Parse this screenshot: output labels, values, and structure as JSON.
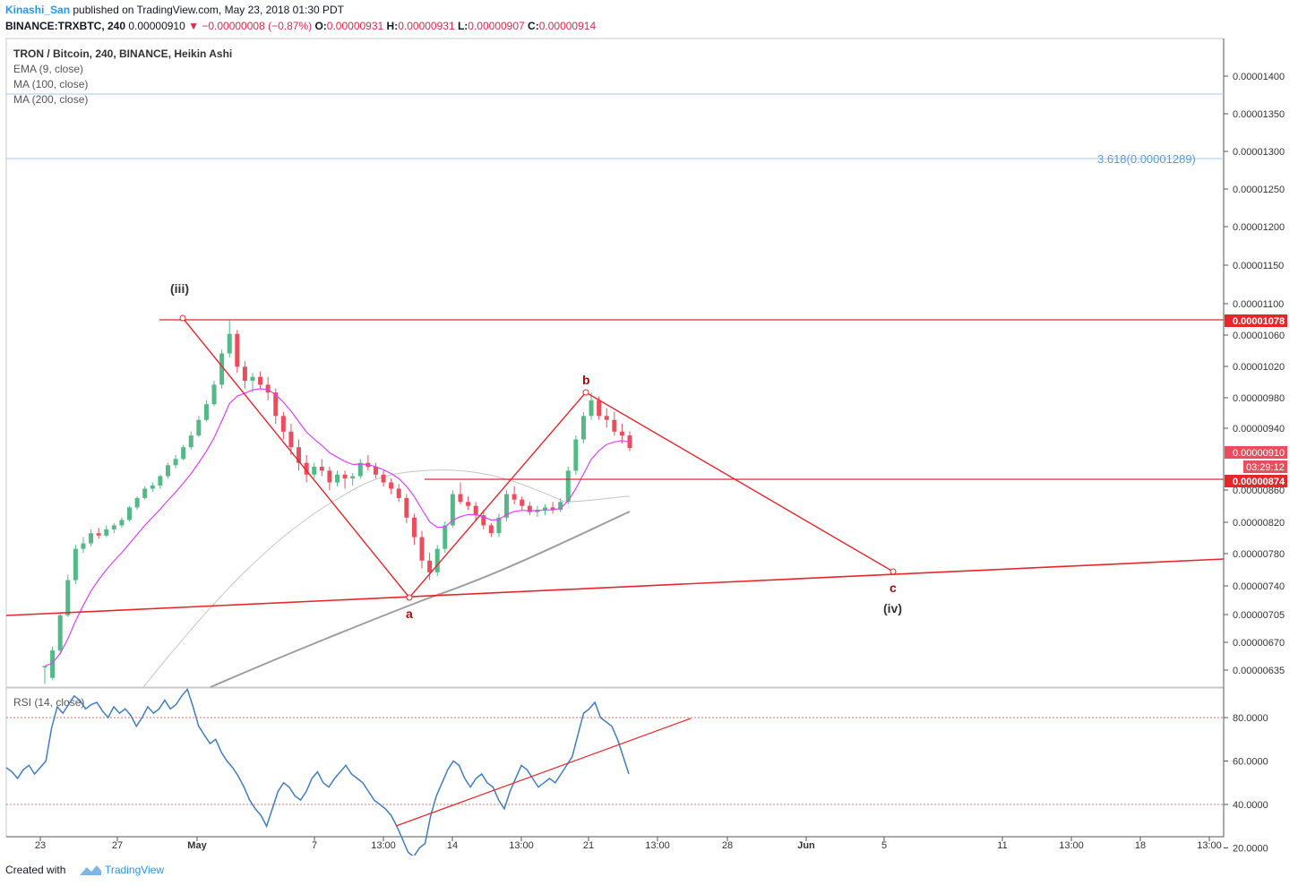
{
  "header": {
    "author": "Kinashi_San",
    "published": "published on TradingView.com, May 23, 2018 01:30 PDT",
    "symbol": "BINANCE:TRXBTC, 240",
    "price": "0.00000910",
    "change": "−0.00000008 (−0.87%)",
    "ohlc": {
      "o": "0.00000931",
      "h": "0.00000931",
      "l": "0.00000907",
      "c": "0.00000914"
    }
  },
  "legend": {
    "title": "TRON / Bitcoin, 240, BINANCE, Heikin Ashi",
    "indicators": [
      "EMA (9, close)",
      "MA (100, close)",
      "MA (200, close)"
    ]
  },
  "rsi_legend": "RSI (14, close)",
  "footer": {
    "created_with": "Created with",
    "brand": "TradingView"
  },
  "colors": {
    "up": "#53b987",
    "down": "#eb4d5c",
    "drawing": "#e8262a",
    "ema": "#e040fb",
    "ma": "#a0a0a0",
    "rsi": "#3f7dc2",
    "fib": "#5b9bd5"
  },
  "chart_data": [
    {
      "type": "candlestick",
      "title": "TRON / Bitcoin, 240, BINANCE, Heikin Ashi",
      "x_tick_labels": [
        "23",
        "27",
        "May",
        "7",
        "13:00",
        "14",
        "13:00",
        "21",
        "13:00",
        "28",
        "Jun",
        "5",
        "11",
        "13:00",
        "18",
        "13:00"
      ],
      "y_tick_labels": [
        "0.00001400",
        "0.00001350",
        "0.00001300",
        "0.00001250",
        "0.00001200",
        "0.00001150",
        "0.00001100",
        "0.00001060",
        "0.00001020",
        "0.00000980",
        "0.00000940",
        "0.00000860",
        "0.00000820",
        "0.00000780",
        "0.00000740",
        "0.00000705",
        "0.00000670",
        "0.00000635"
      ],
      "price_labels": [
        "0.00001078",
        "0.00000910",
        "03:29:12",
        "0.00000874"
      ],
      "fib_label": "3.618(0.00001289)",
      "wave_labels": [
        "(iii)",
        "a",
        "b",
        "c",
        "(iv)"
      ],
      "ohlc_approx": [
        [
          635,
          635,
          612,
          635
        ],
        [
          620,
          660,
          618,
          655
        ],
        [
          655,
          702,
          650,
          700
        ],
        [
          700,
          752,
          698,
          745
        ],
        [
          745,
          790,
          740,
          785
        ],
        [
          785,
          800,
          780,
          792
        ],
        [
          792,
          810,
          788,
          805
        ],
        [
          805,
          812,
          798,
          802
        ],
        [
          802,
          815,
          800,
          810
        ],
        [
          810,
          818,
          805,
          815
        ],
        [
          815,
          825,
          812,
          822
        ],
        [
          822,
          840,
          820,
          838
        ],
        [
          838,
          852,
          835,
          850
        ],
        [
          850,
          865,
          848,
          862
        ],
        [
          862,
          870,
          858,
          866
        ],
        [
          866,
          880,
          862,
          878
        ],
        [
          878,
          895,
          875,
          892
        ],
        [
          892,
          905,
          888,
          900
        ],
        [
          900,
          918,
          898,
          915
        ],
        [
          915,
          935,
          912,
          930
        ],
        [
          930,
          955,
          928,
          950
        ],
        [
          950,
          975,
          948,
          970
        ],
        [
          970,
          1000,
          968,
          995
        ],
        [
          995,
          1040,
          990,
          1035
        ],
        [
          1035,
          1078,
          1030,
          1060
        ],
        [
          1060,
          1065,
          1010,
          1018
        ],
        [
          1018,
          1025,
          990,
          1000
        ],
        [
          1000,
          1010,
          985,
          1005
        ],
        [
          1005,
          1012,
          990,
          995
        ],
        [
          995,
          1005,
          975,
          985
        ],
        [
          985,
          990,
          945,
          955
        ],
        [
          955,
          960,
          925,
          935
        ],
        [
          935,
          945,
          905,
          915
        ],
        [
          915,
          925,
          885,
          895
        ],
        [
          895,
          905,
          870,
          880
        ],
        [
          880,
          895,
          875,
          890
        ],
        [
          890,
          900,
          878,
          885
        ],
        [
          885,
          890,
          860,
          870
        ],
        [
          870,
          885,
          865,
          880
        ],
        [
          880,
          885,
          862,
          875
        ],
        [
          875,
          882,
          866,
          878
        ],
        [
          878,
          900,
          875,
          895
        ],
        [
          895,
          905,
          885,
          890
        ],
        [
          890,
          895,
          875,
          880
        ],
        [
          880,
          885,
          865,
          870
        ],
        [
          870,
          875,
          855,
          862
        ],
        [
          862,
          868,
          845,
          850
        ],
        [
          850,
          855,
          818,
          825
        ],
        [
          825,
          830,
          790,
          800
        ],
        [
          800,
          808,
          760,
          770
        ],
        [
          770,
          780,
          745,
          755
        ],
        [
          755,
          790,
          750,
          785
        ],
        [
          785,
          820,
          780,
          815
        ],
        [
          815,
          860,
          812,
          855
        ],
        [
          855,
          870,
          842,
          845
        ],
        [
          845,
          852,
          835,
          840
        ],
        [
          840,
          845,
          820,
          828
        ],
        [
          828,
          835,
          810,
          815
        ],
        [
          815,
          818,
          800,
          805
        ],
        [
          805,
          830,
          800,
          825
        ],
        [
          825,
          860,
          820,
          855
        ],
        [
          855,
          865,
          842,
          848
        ],
        [
          848,
          852,
          835,
          840
        ],
        [
          840,
          845,
          828,
          832
        ],
        [
          832,
          840,
          826,
          835
        ],
        [
          835,
          842,
          828,
          838
        ],
        [
          838,
          845,
          830,
          835
        ],
        [
          835,
          850,
          832,
          845
        ],
        [
          845,
          890,
          842,
          885
        ],
        [
          885,
          930,
          880,
          925
        ],
        [
          925,
          960,
          920,
          955
        ],
        [
          955,
          985,
          950,
          975
        ],
        [
          975,
          980,
          950,
          955
        ],
        [
          955,
          965,
          940,
          950
        ],
        [
          950,
          960,
          930,
          935
        ],
        [
          935,
          945,
          920,
          930
        ],
        [
          930,
          935,
          910,
          914
        ]
      ],
      "levels": {
        "resistance": 1078,
        "support": 874,
        "fib_3618": 1289
      }
    },
    {
      "type": "line",
      "title": "RSI (14, close)",
      "y_tick_labels": [
        "80.0000",
        "60.0000",
        "40.0000",
        "20.0000"
      ],
      "ylim": [
        15,
        95
      ],
      "bands": [
        70,
        30
      ],
      "values": [
        57,
        55,
        52,
        56,
        58,
        54,
        57,
        60,
        75,
        85,
        82,
        86,
        90,
        88,
        84,
        86,
        87,
        83,
        80,
        85,
        82,
        84,
        81,
        76,
        80,
        85,
        82,
        84,
        88,
        84,
        86,
        90,
        93,
        85,
        76,
        72,
        68,
        70,
        64,
        60,
        57,
        53,
        48,
        42,
        38,
        35,
        30,
        38,
        46,
        50,
        48,
        44,
        42,
        46,
        52,
        55,
        50,
        48,
        52,
        55,
        58,
        54,
        52,
        50,
        46,
        42,
        40,
        38,
        35,
        30,
        24,
        18,
        16,
        20,
        22,
        35,
        44,
        50,
        56,
        60,
        58,
        52,
        48,
        52,
        54,
        50,
        48,
        42,
        38,
        46,
        52,
        58,
        56,
        52,
        48,
        50,
        52,
        50,
        54,
        58,
        62,
        72,
        82,
        84,
        87,
        80,
        78,
        76,
        70,
        62,
        54
      ]
    }
  ]
}
